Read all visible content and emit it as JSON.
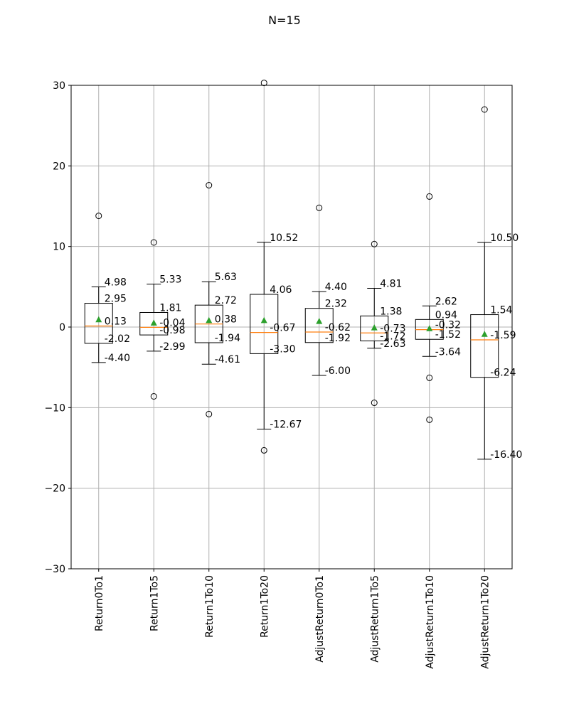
{
  "chart_data": {
    "type": "boxplot",
    "title": "N=15",
    "xlabel": "",
    "ylabel": "",
    "ylim": [
      -30,
      30
    ],
    "yticks": [
      -30,
      -20,
      -10,
      0,
      10,
      20,
      30
    ],
    "ytick_labels": [
      "−30",
      "−20",
      "−10",
      "0",
      "10",
      "20",
      "30"
    ],
    "grid": true,
    "colors": {
      "box": "#000000",
      "median": "#ff7f0e",
      "mean": "#2ca02c",
      "grid": "#b0b0b0"
    },
    "series": [
      {
        "name": "Return0To1",
        "whisker_low": -4.4,
        "q1": -2.02,
        "median": 0.13,
        "q3": 2.95,
        "whisker_high": 4.98,
        "mean": 0.9,
        "outliers": [
          13.8
        ],
        "labels": [
          "4.98",
          "2.95",
          "0.13",
          "-2.02",
          "-4.40"
        ]
      },
      {
        "name": "Return1To5",
        "whisker_low": -2.99,
        "q1": -0.98,
        "median": -0.04,
        "q3": 1.81,
        "whisker_high": 5.33,
        "mean": 0.5,
        "outliers": [
          10.5,
          -8.6
        ],
        "labels": [
          "5.33",
          "1.81",
          "-0.04",
          "-0.98",
          "-2.99"
        ]
      },
      {
        "name": "Return1To10",
        "whisker_low": -4.61,
        "q1": -1.94,
        "median": 0.38,
        "q3": 2.72,
        "whisker_high": 5.63,
        "mean": 0.8,
        "outliers": [
          17.6,
          -10.8
        ],
        "labels": [
          "5.63",
          "2.72",
          "0.38",
          "-1.94",
          "-4.61"
        ]
      },
      {
        "name": "Return1To20",
        "whisker_low": -12.67,
        "q1": -3.3,
        "median": -0.67,
        "q3": 4.06,
        "whisker_high": 10.52,
        "mean": 0.8,
        "outliers": [
          30.3,
          -15.3
        ],
        "labels": [
          "10.52",
          "4.06",
          "-0.67",
          "-3.30",
          "-12.67"
        ]
      },
      {
        "name": "AdjustReturn0To1",
        "whisker_low": -6.0,
        "q1": -1.92,
        "median": -0.62,
        "q3": 2.32,
        "whisker_high": 4.4,
        "mean": 0.7,
        "outliers": [
          14.8
        ],
        "labels": [
          "4.40",
          "2.32",
          "-0.62",
          "-1.92",
          "-6.00"
        ]
      },
      {
        "name": "AdjustReturn1To5",
        "whisker_low": -2.63,
        "q1": -1.72,
        "median": -0.73,
        "q3": 1.38,
        "whisker_high": 4.81,
        "mean": -0.1,
        "outliers": [
          10.3,
          -9.4
        ],
        "labels": [
          "4.81",
          "1.38",
          "-0.73",
          "-1.72",
          "-2.63"
        ]
      },
      {
        "name": "AdjustReturn1To10",
        "whisker_low": -3.64,
        "q1": -1.52,
        "median": -0.32,
        "q3": 0.94,
        "whisker_high": 2.62,
        "mean": -0.2,
        "outliers": [
          16.2,
          -6.3,
          -11.5
        ],
        "labels": [
          "2.62",
          "0.94",
          "-0.32",
          "-1.52",
          "-3.64"
        ]
      },
      {
        "name": "AdjustReturn1To20",
        "whisker_low": -16.4,
        "q1": -6.24,
        "median": -1.59,
        "q3": 1.54,
        "whisker_high": 10.5,
        "mean": -0.9,
        "outliers": [
          27.0
        ],
        "labels": [
          "10.50",
          "1.54",
          "-1.59",
          "-6.24",
          "-16.40"
        ]
      }
    ]
  }
}
